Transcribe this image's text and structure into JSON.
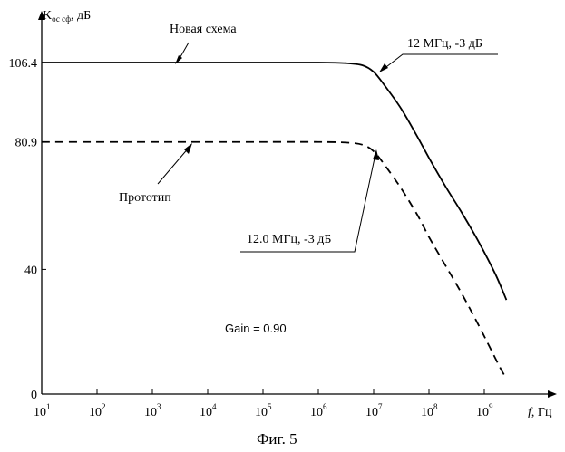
{
  "chart_data": {
    "type": "line",
    "title": "",
    "caption": "Фиг. 5",
    "ylabel": {
      "main": "K",
      "sub": "ос сф",
      "unit": ", дБ"
    },
    "xlabel": {
      "main": "f",
      "unit": ", Гц"
    },
    "xscale": "log",
    "xlim_exp": [
      1,
      10
    ],
    "ylim": [
      0,
      120
    ],
    "grid": false,
    "x_ticks": [
      {
        "base": "10",
        "exp": "1"
      },
      {
        "base": "10",
        "exp": "2"
      },
      {
        "base": "10",
        "exp": "3"
      },
      {
        "base": "10",
        "exp": "4"
      },
      {
        "base": "10",
        "exp": "5"
      },
      {
        "base": "10",
        "exp": "6"
      },
      {
        "base": "10",
        "exp": "7"
      },
      {
        "base": "10",
        "exp": "8"
      },
      {
        "base": "10",
        "exp": "9"
      }
    ],
    "y_ticks": [
      {
        "value": 0,
        "label": "0"
      },
      {
        "value": 40,
        "label": "40"
      },
      {
        "value": 80.9,
        "label": "80.9"
      },
      {
        "value": 106.4,
        "label": "106.4"
      }
    ],
    "series": [
      {
        "name": "Новая схема",
        "style": "solid",
        "x_exp": [
          1.0,
          2.0,
          3.0,
          4.0,
          5.0,
          6.0,
          6.5,
          6.8,
          7.0,
          7.2,
          7.5,
          7.8,
          8.0,
          8.3,
          8.6,
          8.9,
          9.2,
          9.4
        ],
        "y": [
          106.4,
          106.4,
          106.4,
          106.4,
          106.4,
          106.4,
          106.2,
          105.5,
          103.4,
          99.0,
          91.5,
          82.3,
          75.8,
          66.6,
          58.0,
          48.8,
          38.5,
          30.2
        ]
      },
      {
        "name": "Прототип",
        "style": "dashed",
        "x_exp": [
          1.0,
          2.0,
          3.0,
          4.0,
          5.0,
          6.0,
          6.5,
          6.8,
          7.0,
          7.2,
          7.5,
          7.8,
          8.0,
          8.3,
          8.6,
          8.9,
          9.1,
          9.3,
          9.4
        ],
        "y": [
          80.9,
          80.9,
          80.9,
          80.9,
          80.9,
          80.9,
          80.7,
          80.0,
          77.9,
          73.5,
          65.9,
          57.2,
          50.4,
          41.2,
          32.0,
          22.0,
          15.0,
          8.0,
          5.0
        ]
      }
    ],
    "annotations": {
      "new_label": "Новая схема",
      "proto_label": "Прототип",
      "new_cutoff": "12 МГц, -3 дБ",
      "proto_cutoff": "12.0 МГц, -3 дБ",
      "gain": "Gain = 0.90"
    }
  }
}
